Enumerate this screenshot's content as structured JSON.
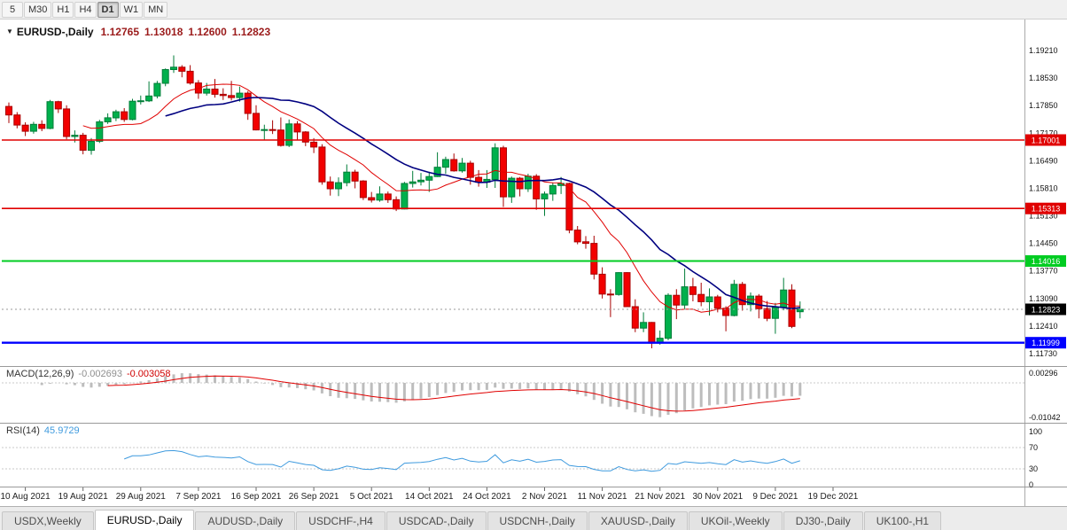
{
  "icons": {
    "collapse": "▼"
  },
  "toolbar": {
    "timeframes": [
      "5",
      "M30",
      "H1",
      "H4",
      "D1",
      "W1",
      "MN"
    ],
    "active_timeframe": "D1"
  },
  "chart_data": {
    "type": "candlestick",
    "title": {
      "symbol": "EURUSD-,Daily",
      "open": "1.12765",
      "high": "1.13018",
      "low": "1.12600",
      "close": "1.12823"
    },
    "price_scale": {
      "top": 1.19802,
      "bottom": 1.11467
    },
    "y_axis_labels": [
      "1.19210",
      "1.18530",
      "1.17850",
      "1.17170",
      "1.16490",
      "1.15810",
      "1.15130",
      "1.14450",
      "1.13770",
      "1.13090",
      "1.12410",
      "1.11730"
    ],
    "x_labels": [
      "10 Aug 2021",
      "19 Aug 2021",
      "29 Aug 2021",
      "7 Sep 2021",
      "16 Sep 2021",
      "26 Sep 2021",
      "5 Oct 2021",
      "14 Oct 2021",
      "24 Oct 2021",
      "2 Nov 2021",
      "11 Nov 2021",
      "21 Nov 2021",
      "30 Nov 2021",
      "9 Dec 2021",
      "19 Dec 2021"
    ],
    "colors": {
      "up": "#00b04c",
      "up_border": "#007d38",
      "down": "#f20000",
      "down_border": "#a80000",
      "macd_hist": "#bdbdbd",
      "macd_signal": "#e00000",
      "rsi": "#3e9ade"
    },
    "moving_averages": [
      {
        "period": 10,
        "color": "#e00000",
        "width": 1
      },
      {
        "period": 20,
        "color": "#000080",
        "width": 1.6
      }
    ],
    "hlines": [
      {
        "value": 1.17001,
        "label": "1.17001",
        "color": "#e00000",
        "width": 1.6
      },
      {
        "value": 1.15313,
        "label": "1.15313",
        "color": "#e00000",
        "width": 1.6
      },
      {
        "value": 1.14016,
        "label": "1.14016",
        "color": "#00cc22",
        "width": 2
      },
      {
        "value": 1.11999,
        "label": "1.11999",
        "color": "#0000ff",
        "width": 2.4
      }
    ],
    "current_price": {
      "value": 1.12823,
      "label": "1.12823",
      "badge": "#000000"
    },
    "indicators": {
      "macd": {
        "label": "MACD(12,26,9)",
        "value_main": "-0.002693",
        "value_signal": "-0.003058",
        "fast": 12,
        "slow": 26,
        "signal": 9,
        "axis_labels": [
          {
            "text": "0.00296",
            "value": 0.00296
          },
          {
            "text": "-0.01042",
            "value": -0.01042
          }
        ]
      },
      "rsi": {
        "label": "RSI(14)",
        "value": "45.9729",
        "period": 14,
        "levels": [
          70,
          30
        ],
        "axis_labels": [
          {
            "text": "100",
            "value": 100
          },
          {
            "text": "70",
            "value": 70
          },
          {
            "text": "30",
            "value": 30
          },
          {
            "text": "0",
            "value": 0
          }
        ]
      }
    },
    "candles": [
      [
        1.1783,
        1.1793,
        1.1742,
        1.1762
      ],
      [
        1.1762,
        1.1769,
        1.1729,
        1.1737
      ],
      [
        1.1737,
        1.1744,
        1.171,
        1.1722
      ],
      [
        1.1722,
        1.1745,
        1.1716,
        1.1739
      ],
      [
        1.1739,
        1.1749,
        1.1722,
        1.1729
      ],
      [
        1.1729,
        1.1799,
        1.1727,
        1.1795
      ],
      [
        1.1795,
        1.1797,
        1.1767,
        1.1777
      ],
      [
        1.1777,
        1.1786,
        1.1702,
        1.1709
      ],
      [
        1.1709,
        1.1724,
        1.1694,
        1.1712
      ],
      [
        1.1712,
        1.1718,
        1.1665,
        1.1675
      ],
      [
        1.1675,
        1.1705,
        1.1664,
        1.1697
      ],
      [
        1.1697,
        1.175,
        1.1693,
        1.1745
      ],
      [
        1.1745,
        1.1766,
        1.174,
        1.1755
      ],
      [
        1.1755,
        1.1775,
        1.1747,
        1.177
      ],
      [
        1.177,
        1.1779,
        1.1745,
        1.1751
      ],
      [
        1.1751,
        1.1802,
        1.1749,
        1.1796
      ],
      [
        1.1796,
        1.181,
        1.1788,
        1.1797
      ],
      [
        1.1797,
        1.1845,
        1.1794,
        1.1809
      ],
      [
        1.1809,
        1.1846,
        1.1803,
        1.184
      ],
      [
        1.184,
        1.1877,
        1.1833,
        1.1874
      ],
      [
        1.1874,
        1.1909,
        1.1866,
        1.188
      ],
      [
        1.188,
        1.1885,
        1.1855,
        1.187
      ],
      [
        1.187,
        1.1885,
        1.1837,
        1.1841
      ],
      [
        1.1841,
        1.1848,
        1.1802,
        1.1816
      ],
      [
        1.1816,
        1.1841,
        1.181,
        1.1826
      ],
      [
        1.1826,
        1.1851,
        1.1805,
        1.1813
      ],
      [
        1.1813,
        1.1828,
        1.1799,
        1.181
      ],
      [
        1.181,
        1.1846,
        1.1798,
        1.1805
      ],
      [
        1.1805,
        1.1832,
        1.1795,
        1.1816
      ],
      [
        1.1816,
        1.1821,
        1.175,
        1.1766
      ],
      [
        1.1766,
        1.1786,
        1.1724,
        1.1725
      ],
      [
        1.1725,
        1.1738,
        1.17,
        1.1726
      ],
      [
        1.1726,
        1.1749,
        1.1715,
        1.1725
      ],
      [
        1.1725,
        1.1756,
        1.1684,
        1.1687
      ],
      [
        1.1687,
        1.1751,
        1.1683,
        1.174
      ],
      [
        1.174,
        1.1747,
        1.1701,
        1.172
      ],
      [
        1.172,
        1.1722,
        1.1685,
        1.1695
      ],
      [
        1.1695,
        1.1705,
        1.1668,
        1.1683
      ],
      [
        1.1683,
        1.169,
        1.159,
        1.1597
      ],
      [
        1.1597,
        1.161,
        1.1563,
        1.158
      ],
      [
        1.158,
        1.1608,
        1.1562,
        1.1595
      ],
      [
        1.1595,
        1.164,
        1.1586,
        1.1621
      ],
      [
        1.1621,
        1.1627,
        1.1581,
        1.1599
      ],
      [
        1.1599,
        1.1601,
        1.1552,
        1.1558
      ],
      [
        1.1558,
        1.1572,
        1.1546,
        1.1552
      ],
      [
        1.1552,
        1.1586,
        1.1548,
        1.1567
      ],
      [
        1.1567,
        1.1573,
        1.1545,
        1.1553
      ],
      [
        1.1553,
        1.1561,
        1.1525,
        1.153
      ],
      [
        1.153,
        1.1597,
        1.1529,
        1.1593
      ],
      [
        1.1593,
        1.1624,
        1.1583,
        1.1597
      ],
      [
        1.1597,
        1.1619,
        1.1588,
        1.1601
      ],
      [
        1.1601,
        1.1622,
        1.1572,
        1.161
      ],
      [
        1.161,
        1.167,
        1.1609,
        1.1633
      ],
      [
        1.1633,
        1.1659,
        1.1617,
        1.1652
      ],
      [
        1.1652,
        1.1667,
        1.1622,
        1.1624
      ],
      [
        1.1624,
        1.1656,
        1.162,
        1.1643
      ],
      [
        1.1643,
        1.1649,
        1.159,
        1.1608
      ],
      [
        1.1608,
        1.1626,
        1.1585,
        1.1596
      ],
      [
        1.1596,
        1.1626,
        1.1582,
        1.1603
      ],
      [
        1.1603,
        1.1692,
        1.1582,
        1.1681
      ],
      [
        1.1681,
        1.1686,
        1.1535,
        1.156
      ],
      [
        1.156,
        1.161,
        1.1545,
        1.1606
      ],
      [
        1.1606,
        1.1609,
        1.1561,
        1.158
      ],
      [
        1.158,
        1.1617,
        1.1572,
        1.1611
      ],
      [
        1.1611,
        1.1616,
        1.1528,
        1.1555
      ],
      [
        1.1555,
        1.1573,
        1.1513,
        1.1567
      ],
      [
        1.1567,
        1.1594,
        1.155,
        1.1588
      ],
      [
        1.1588,
        1.1609,
        1.1567,
        1.1593
      ],
      [
        1.1593,
        1.1595,
        1.147,
        1.1478
      ],
      [
        1.1478,
        1.1488,
        1.1443,
        1.1449
      ],
      [
        1.1449,
        1.1463,
        1.1432,
        1.1445
      ],
      [
        1.1445,
        1.1464,
        1.1356,
        1.1369
      ],
      [
        1.1369,
        1.1386,
        1.1309,
        1.132
      ],
      [
        1.132,
        1.1332,
        1.1263,
        1.1319
      ],
      [
        1.1319,
        1.1374,
        1.1316,
        1.1373
      ],
      [
        1.1373,
        1.1374,
        1.1288,
        1.1289
      ],
      [
        1.1289,
        1.1307,
        1.1226,
        1.1236
      ],
      [
        1.1236,
        1.1275,
        1.1226,
        1.125
      ],
      [
        1.125,
        1.1251,
        1.1186,
        1.1199
      ],
      [
        1.1199,
        1.123,
        1.1195,
        1.1211
      ],
      [
        1.1211,
        1.1322,
        1.1206,
        1.1317
      ],
      [
        1.1317,
        1.1332,
        1.1258,
        1.1293
      ],
      [
        1.1293,
        1.1383,
        1.1282,
        1.1338
      ],
      [
        1.1338,
        1.136,
        1.1302,
        1.1319
      ],
      [
        1.1319,
        1.1348,
        1.129,
        1.1301
      ],
      [
        1.1301,
        1.1334,
        1.1267,
        1.1313
      ],
      [
        1.1313,
        1.1318,
        1.1275,
        1.1285
      ],
      [
        1.1285,
        1.129,
        1.1228,
        1.1267
      ],
      [
        1.1267,
        1.1355,
        1.1265,
        1.1344
      ],
      [
        1.1344,
        1.135,
        1.1279,
        1.1294
      ],
      [
        1.1294,
        1.1324,
        1.1277,
        1.1315
      ],
      [
        1.1315,
        1.132,
        1.126,
        1.1284
      ],
      [
        1.1284,
        1.1303,
        1.1253,
        1.126
      ],
      [
        1.126,
        1.1298,
        1.1222,
        1.1287
      ],
      [
        1.1287,
        1.136,
        1.128,
        1.133
      ],
      [
        1.133,
        1.1344,
        1.1236,
        1.124
      ],
      [
        1.12765,
        1.13018,
        1.126,
        1.12823
      ]
    ]
  },
  "tabs": {
    "items": [
      "USDX,Weekly",
      "EURUSD-,Daily",
      "AUDUSD-,Daily",
      "USDCHF-,H4",
      "USDCAD-,Daily",
      "USDCNH-,Daily",
      "XAUUSD-,Daily",
      "UKOil-,Weekly",
      "DJ30-,Daily",
      "UK100-,H1"
    ],
    "active": "EURUSD-,Daily"
  }
}
